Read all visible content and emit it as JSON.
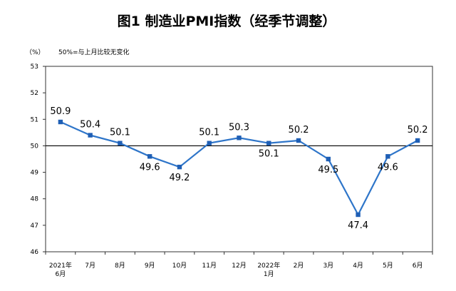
{
  "chart_data": {
    "type": "line",
    "title": "图1  制造业PMI指数（经季节调整）",
    "unit_label": "（%）",
    "note": "50%=与上月比较无变化",
    "categories": [
      "2021年|6月",
      "7月",
      "8月",
      "9月",
      "10月",
      "11月",
      "12月",
      "2022年|1月",
      "2月",
      "3月",
      "4月",
      "5月",
      "6月"
    ],
    "series": [
      {
        "values": [
          50.9,
          50.4,
          50.1,
          49.6,
          49.2,
          50.1,
          50.3,
          50.1,
          50.2,
          49.5,
          47.4,
          49.6,
          50.2
        ]
      }
    ],
    "data_labels": [
      "50.9",
      "50.4",
      "50.1",
      "49.6",
      "49.2",
      "50.1",
      "50.3",
      "50.1",
      "50.2",
      "49.5",
      "47.4",
      "49.6",
      "50.2"
    ],
    "yticks": [
      46,
      47,
      48,
      49,
      50,
      51,
      52,
      53
    ],
    "ylim": [
      46,
      53
    ],
    "reference_line": 50,
    "grid": false,
    "colors": {
      "line": "#2E75C9",
      "marker": "#1F5FB5",
      "axis": "#000000"
    }
  }
}
